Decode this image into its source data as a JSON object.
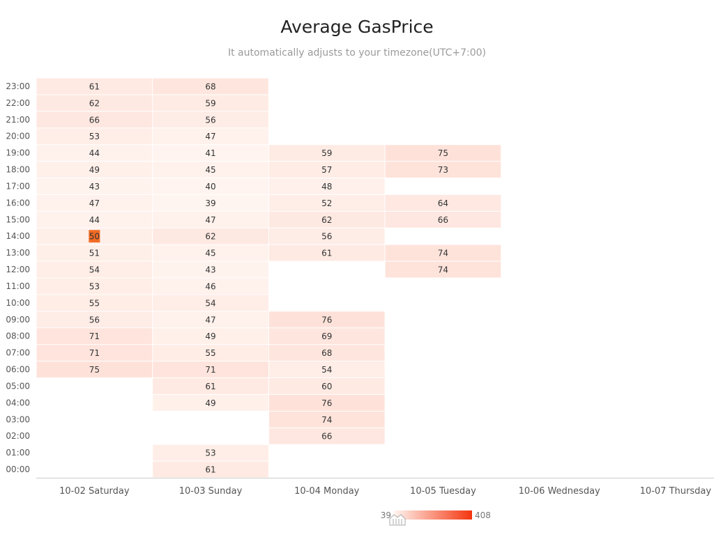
{
  "title": "Average GasPrice",
  "subtitle": "It automatically adjusts to your timezone(UTC+7:00)",
  "chart_data": {
    "type": "heatmap",
    "x_categories": [
      "10-02 Saturday",
      "10-03 Sunday",
      "10-04 Monday",
      "10-05 Tuesday",
      "10-06 Wednesday",
      "10-07 Thursday"
    ],
    "y_categories": [
      "00:00",
      "01:00",
      "02:00",
      "03:00",
      "04:00",
      "05:00",
      "06:00",
      "07:00",
      "08:00",
      "09:00",
      "10:00",
      "11:00",
      "12:00",
      "13:00",
      "14:00",
      "15:00",
      "16:00",
      "17:00",
      "18:00",
      "19:00",
      "20:00",
      "21:00",
      "22:00",
      "23:00"
    ],
    "cells": [
      {
        "x": "10-02 Saturday",
        "y": "23:00",
        "value": 61
      },
      {
        "x": "10-02 Saturday",
        "y": "22:00",
        "value": 62
      },
      {
        "x": "10-02 Saturday",
        "y": "21:00",
        "value": 66
      },
      {
        "x": "10-02 Saturday",
        "y": "20:00",
        "value": 53
      },
      {
        "x": "10-02 Saturday",
        "y": "19:00",
        "value": 44
      },
      {
        "x": "10-02 Saturday",
        "y": "18:00",
        "value": 49
      },
      {
        "x": "10-02 Saturday",
        "y": "17:00",
        "value": 43
      },
      {
        "x": "10-02 Saturday",
        "y": "16:00",
        "value": 47
      },
      {
        "x": "10-02 Saturday",
        "y": "15:00",
        "value": 44
      },
      {
        "x": "10-02 Saturday",
        "y": "14:00",
        "value": 50,
        "highlight": true
      },
      {
        "x": "10-02 Saturday",
        "y": "13:00",
        "value": 51
      },
      {
        "x": "10-02 Saturday",
        "y": "12:00",
        "value": 54
      },
      {
        "x": "10-02 Saturday",
        "y": "11:00",
        "value": 53
      },
      {
        "x": "10-02 Saturday",
        "y": "10:00",
        "value": 55
      },
      {
        "x": "10-02 Saturday",
        "y": "09:00",
        "value": 56
      },
      {
        "x": "10-02 Saturday",
        "y": "08:00",
        "value": 71
      },
      {
        "x": "10-02 Saturday",
        "y": "07:00",
        "value": 71
      },
      {
        "x": "10-02 Saturday",
        "y": "06:00",
        "value": 75
      },
      {
        "x": "10-03 Sunday",
        "y": "23:00",
        "value": 68
      },
      {
        "x": "10-03 Sunday",
        "y": "22:00",
        "value": 59
      },
      {
        "x": "10-03 Sunday",
        "y": "21:00",
        "value": 56
      },
      {
        "x": "10-03 Sunday",
        "y": "20:00",
        "value": 47
      },
      {
        "x": "10-03 Sunday",
        "y": "19:00",
        "value": 41
      },
      {
        "x": "10-03 Sunday",
        "y": "18:00",
        "value": 45
      },
      {
        "x": "10-03 Sunday",
        "y": "17:00",
        "value": 40
      },
      {
        "x": "10-03 Sunday",
        "y": "16:00",
        "value": 39
      },
      {
        "x": "10-03 Sunday",
        "y": "15:00",
        "value": 47
      },
      {
        "x": "10-03 Sunday",
        "y": "14:00",
        "value": 62
      },
      {
        "x": "10-03 Sunday",
        "y": "13:00",
        "value": 45
      },
      {
        "x": "10-03 Sunday",
        "y": "12:00",
        "value": 43
      },
      {
        "x": "10-03 Sunday",
        "y": "11:00",
        "value": 46
      },
      {
        "x": "10-03 Sunday",
        "y": "10:00",
        "value": 54
      },
      {
        "x": "10-03 Sunday",
        "y": "09:00",
        "value": 47
      },
      {
        "x": "10-03 Sunday",
        "y": "08:00",
        "value": 49
      },
      {
        "x": "10-03 Sunday",
        "y": "07:00",
        "value": 55
      },
      {
        "x": "10-03 Sunday",
        "y": "06:00",
        "value": 71
      },
      {
        "x": "10-03 Sunday",
        "y": "05:00",
        "value": 61
      },
      {
        "x": "10-03 Sunday",
        "y": "04:00",
        "value": 49
      },
      {
        "x": "10-03 Sunday",
        "y": "01:00",
        "value": 53
      },
      {
        "x": "10-03 Sunday",
        "y": "00:00",
        "value": 61
      },
      {
        "x": "10-04 Monday",
        "y": "19:00",
        "value": 59
      },
      {
        "x": "10-04 Monday",
        "y": "18:00",
        "value": 57
      },
      {
        "x": "10-04 Monday",
        "y": "17:00",
        "value": 48
      },
      {
        "x": "10-04 Monday",
        "y": "16:00",
        "value": 52
      },
      {
        "x": "10-04 Monday",
        "y": "15:00",
        "value": 62
      },
      {
        "x": "10-04 Monday",
        "y": "14:00",
        "value": 56
      },
      {
        "x": "10-04 Monday",
        "y": "13:00",
        "value": 61
      },
      {
        "x": "10-04 Monday",
        "y": "09:00",
        "value": 76
      },
      {
        "x": "10-04 Monday",
        "y": "08:00",
        "value": 69
      },
      {
        "x": "10-04 Monday",
        "y": "07:00",
        "value": 68
      },
      {
        "x": "10-04 Monday",
        "y": "06:00",
        "value": 54
      },
      {
        "x": "10-04 Monday",
        "y": "05:00",
        "value": 60
      },
      {
        "x": "10-04 Monday",
        "y": "04:00",
        "value": 76
      },
      {
        "x": "10-04 Monday",
        "y": "03:00",
        "value": 74
      },
      {
        "x": "10-04 Monday",
        "y": "02:00",
        "value": 66
      },
      {
        "x": "10-05 Tuesday",
        "y": "19:00",
        "value": 75
      },
      {
        "x": "10-05 Tuesday",
        "y": "18:00",
        "value": 73
      },
      {
        "x": "10-05 Tuesday",
        "y": "16:00",
        "value": 64
      },
      {
        "x": "10-05 Tuesday",
        "y": "15:00",
        "value": 66
      },
      {
        "x": "10-05 Tuesday",
        "y": "13:00",
        "value": 74
      },
      {
        "x": "10-05 Tuesday",
        "y": "12:00",
        "value": 74
      }
    ],
    "visual_map": {
      "min": 39,
      "max": 408,
      "min_label": "39",
      "max_label": "408",
      "color_low": "#fff5f0",
      "color_high": "#f4350f"
    },
    "highlight_color": "#f26b24"
  }
}
